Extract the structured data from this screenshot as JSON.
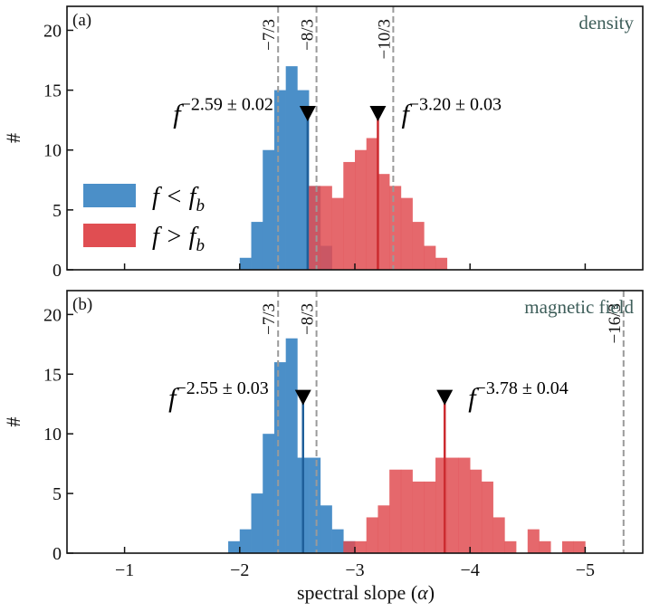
{
  "chart_data": [
    {
      "type": "histogram",
      "panel_label": "(a)",
      "title": "density",
      "xlabel": "",
      "ylabel": "#",
      "xlim": [
        -0.5,
        -5.5
      ],
      "ylim": [
        0,
        22
      ],
      "yticks": [
        0,
        5,
        10,
        15,
        20
      ],
      "ytick_labels": [
        "0",
        "5",
        "10",
        "15",
        "20"
      ],
      "bin_width": 0.1,
      "series": [
        {
          "name": "f < f_b",
          "legend_main": "f <",
          "legend_sub": "b",
          "color": "#4b8fc8",
          "bins_start": -2.0,
          "counts": [
            1,
            4,
            10,
            15,
            17,
            15,
            7,
            2,
            0,
            0
          ],
          "median": -2.59,
          "annotation_base": "f",
          "annotation_exp": "−2.59 ± 0.02"
        },
        {
          "name": "f > f_b",
          "legend_main": "f >",
          "legend_sub": "b",
          "color": "#e04e52",
          "bins_start": -2.6,
          "counts": [
            7,
            7,
            6,
            9,
            10,
            11,
            8,
            7,
            6,
            4,
            2,
            1
          ],
          "median": -3.2,
          "annotation_base": "f",
          "annotation_exp": "−3.20 ± 0.03"
        }
      ],
      "reference_lines": [
        {
          "value": -2.3333,
          "label": "−7/3"
        },
        {
          "value": -2.6667,
          "label": "−8/3"
        },
        {
          "value": -3.3333,
          "label": "−10/3"
        }
      ]
    },
    {
      "type": "histogram",
      "panel_label": "(b)",
      "title": "magnetic field",
      "xlabel": "spectral slope (α)",
      "xlabel_main": "spectral slope (",
      "xlabel_symbol": "α",
      "xlabel_close": ")",
      "ylabel": "#",
      "xlim": [
        -0.5,
        -5.5
      ],
      "ylim": [
        0,
        22
      ],
      "xticks": [
        -1,
        -2,
        -3,
        -4,
        -5
      ],
      "xtick_labels": [
        "−1",
        "−2",
        "−3",
        "−4",
        "−5"
      ],
      "yticks": [
        0,
        5,
        10,
        15,
        20
      ],
      "ytick_labels": [
        "0",
        "5",
        "10",
        "15",
        "20"
      ],
      "bin_width": 0.1,
      "series": [
        {
          "name": "f < f_b",
          "color": "#4b8fc8",
          "bins_start": -1.9,
          "counts": [
            1,
            2,
            5,
            10,
            16,
            18,
            8,
            8,
            4,
            2,
            1
          ],
          "median": -2.55,
          "annotation_base": "f",
          "annotation_exp": "−2.55 ± 0.03"
        },
        {
          "name": "f > f_b",
          "color": "#e04e52",
          "bins_start": -2.9,
          "counts": [
            1,
            1,
            3,
            4,
            7,
            7,
            6,
            6,
            8,
            8,
            8,
            7,
            6,
            3,
            1,
            0,
            2,
            1,
            0,
            1,
            1,
            0
          ],
          "median": -3.78,
          "annotation_base": "f",
          "annotation_exp": "−3.78 ± 0.04"
        }
      ],
      "reference_lines": [
        {
          "value": -2.3333,
          "label": "−7/3"
        },
        {
          "value": -2.6667,
          "label": "−8/3"
        },
        {
          "value": -5.3333,
          "label": "−16/3"
        }
      ]
    }
  ]
}
